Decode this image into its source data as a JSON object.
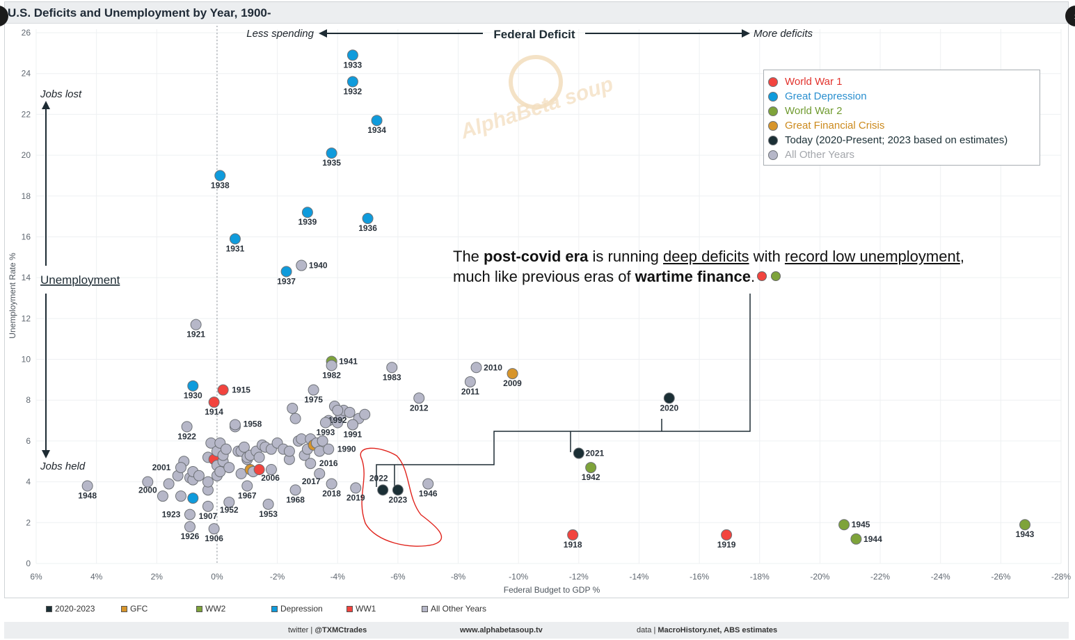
{
  "title": "U.S. Deficits and Unemployment by Year, 1900-",
  "chart_data": {
    "type": "scatter",
    "title": "U.S. Deficits and Unemployment by Year, 1900-",
    "xlabel": "Federal Budget to GDP %",
    "ylabel": "Unemployment Rate %",
    "xlim": [
      6,
      -28
    ],
    "ylim": [
      0,
      26
    ],
    "x_ticks": [
      6,
      4,
      2,
      0,
      -2,
      -4,
      -6,
      -8,
      -10,
      -12,
      -14,
      -16,
      -18,
      -20,
      -22,
      -24,
      -26,
      -28
    ],
    "y_ticks": [
      0,
      2,
      4,
      6,
      8,
      10,
      12,
      14,
      16,
      18,
      20,
      22,
      24,
      26
    ],
    "top_labels": {
      "less": "Less spending",
      "center": "Federal Deficit",
      "more": "More deficits"
    },
    "side_labels": {
      "top": "Jobs lost",
      "middle": "Unemployment",
      "bottom": "Jobs held"
    },
    "categories": {
      "ww1": {
        "name": "World War 1",
        "color": "#f2443e"
      },
      "dep": {
        "name": "Great Depression",
        "color": "#0f9bdc"
      },
      "ww2": {
        "name": "World War 2",
        "color": "#7ea33a"
      },
      "gfc": {
        "name": "Great Financial Crisis",
        "color": "#d7952b"
      },
      "today": {
        "name": "Today (2020-Present; 2023 based on estimates)",
        "color": "#1b2f35"
      },
      "other": {
        "name": "All Other Years",
        "color": "#b6b7c8"
      }
    },
    "labeled_points": [
      {
        "year": "1933",
        "x": -4.5,
        "y": 24.9,
        "cat": "dep"
      },
      {
        "year": "1932",
        "x": -4.5,
        "y": 23.6,
        "cat": "dep"
      },
      {
        "year": "1934",
        "x": -5.3,
        "y": 21.7,
        "cat": "dep"
      },
      {
        "year": "1935",
        "x": -3.8,
        "y": 20.1,
        "cat": "dep"
      },
      {
        "year": "1938",
        "x": -0.1,
        "y": 19.0,
        "cat": "dep"
      },
      {
        "year": "1939",
        "x": -3.0,
        "y": 17.2,
        "cat": "dep"
      },
      {
        "year": "1936",
        "x": -5.0,
        "y": 16.9,
        "cat": "dep"
      },
      {
        "year": "1931",
        "x": -0.6,
        "y": 15.9,
        "cat": "dep"
      },
      {
        "year": "1937",
        "x": -2.3,
        "y": 14.3,
        "cat": "dep"
      },
      {
        "year": "1940",
        "x": -2.8,
        "y": 14.6,
        "cat": "other"
      },
      {
        "year": "1921",
        "x": 0.7,
        "y": 11.7,
        "cat": "other"
      },
      {
        "year": "1941",
        "x": -3.8,
        "y": 9.9,
        "cat": "ww2"
      },
      {
        "year": "1982",
        "x": -3.8,
        "y": 9.7,
        "cat": "other"
      },
      {
        "year": "1983",
        "x": -5.8,
        "y": 9.6,
        "cat": "other"
      },
      {
        "year": "2010",
        "x": -8.6,
        "y": 9.6,
        "cat": "other"
      },
      {
        "year": "2009",
        "x": -9.8,
        "y": 9.3,
        "cat": "gfc"
      },
      {
        "year": "2011",
        "x": -8.4,
        "y": 8.9,
        "cat": "other"
      },
      {
        "year": "1930",
        "x": 0.8,
        "y": 8.7,
        "cat": "dep"
      },
      {
        "year": "1915",
        "x": -0.2,
        "y": 8.5,
        "cat": "ww1"
      },
      {
        "year": "1914",
        "x": 0.1,
        "y": 7.9,
        "cat": "ww1"
      },
      {
        "year": "1975",
        "x": -3.2,
        "y": 8.5,
        "cat": "other"
      },
      {
        "year": "1992",
        "x": -4.0,
        "y": 7.5,
        "cat": "other"
      },
      {
        "year": "1993",
        "x": -3.6,
        "y": 6.9,
        "cat": "other"
      },
      {
        "year": "2012",
        "x": -6.7,
        "y": 8.1,
        "cat": "other"
      },
      {
        "year": "2020",
        "x": -15.0,
        "y": 8.1,
        "cat": "today"
      },
      {
        "year": "1958",
        "x": -0.6,
        "y": 6.8,
        "cat": "other"
      },
      {
        "year": "1922",
        "x": 1.0,
        "y": 6.7,
        "cat": "other"
      },
      {
        "year": "1991",
        "x": -4.5,
        "y": 6.8,
        "cat": "other"
      },
      {
        "year": "1990",
        "x": -3.7,
        "y": 5.6,
        "cat": "other"
      },
      {
        "year": "2021",
        "x": -12.0,
        "y": 5.4,
        "cat": "today"
      },
      {
        "year": "2016",
        "x": -3.1,
        "y": 4.9,
        "cat": "other"
      },
      {
        "year": "2017",
        "x": -3.4,
        "y": 4.4,
        "cat": "other"
      },
      {
        "year": "2001",
        "x": 1.2,
        "y": 4.7,
        "cat": "other"
      },
      {
        "year": "2006",
        "x": -1.4,
        "y": 4.6,
        "cat": "ww1"
      },
      {
        "year": "1942",
        "x": -12.4,
        "y": 4.7,
        "cat": "ww2"
      },
      {
        "year": "2000",
        "x": 2.3,
        "y": 4.0,
        "cat": "other"
      },
      {
        "year": "1948",
        "x": 4.3,
        "y": 3.8,
        "cat": "other"
      },
      {
        "year": "1967",
        "x": -1.0,
        "y": 3.8,
        "cat": "other"
      },
      {
        "year": "2018",
        "x": -3.8,
        "y": 3.9,
        "cat": "other"
      },
      {
        "year": "2019",
        "x": -4.6,
        "y": 3.7,
        "cat": "other"
      },
      {
        "year": "2022",
        "x": -5.5,
        "y": 3.6,
        "cat": "today"
      },
      {
        "year": "2023",
        "x": -6.0,
        "y": 3.6,
        "cat": "today"
      },
      {
        "year": "1946",
        "x": -7.0,
        "y": 3.9,
        "cat": "other"
      },
      {
        "year": "1968",
        "x": -2.6,
        "y": 3.6,
        "cat": "other"
      },
      {
        "year": "1923",
        "x": 0.9,
        "y": 2.4,
        "cat": "other"
      },
      {
        "year": "1907",
        "x": 0.3,
        "y": 2.8,
        "cat": "other"
      },
      {
        "year": "1952",
        "x": -0.4,
        "y": 3.0,
        "cat": "other"
      },
      {
        "year": "1953",
        "x": -1.7,
        "y": 2.9,
        "cat": "other"
      },
      {
        "year": "1926",
        "x": 0.9,
        "y": 1.8,
        "cat": "other"
      },
      {
        "year": "1906",
        "x": 0.1,
        "y": 1.7,
        "cat": "other"
      },
      {
        "year": "1918",
        "x": -11.8,
        "y": 1.4,
        "cat": "ww1"
      },
      {
        "year": "1919",
        "x": -16.9,
        "y": 1.4,
        "cat": "ww1"
      },
      {
        "year": "1945",
        "x": -20.8,
        "y": 1.9,
        "cat": "ww2"
      },
      {
        "year": "1944",
        "x": -21.2,
        "y": 1.2,
        "cat": "ww2"
      },
      {
        "year": "1943",
        "x": -26.8,
        "y": 1.9,
        "cat": "ww2"
      }
    ],
    "unlabeled_points": [
      {
        "x": 1.1,
        "y": 5.0,
        "cat": "other"
      },
      {
        "x": 1.3,
        "y": 4.3,
        "cat": "other"
      },
      {
        "x": 1.6,
        "y": 3.9,
        "cat": "other"
      },
      {
        "x": 1.8,
        "y": 3.3,
        "cat": "other"
      },
      {
        "x": 1.2,
        "y": 3.3,
        "cat": "other"
      },
      {
        "x": 0.9,
        "y": 4.2,
        "cat": "other"
      },
      {
        "x": 0.8,
        "y": 4.1,
        "cat": "other"
      },
      {
        "x": 0.8,
        "y": 3.2,
        "cat": "dep"
      },
      {
        "x": 0.8,
        "y": 4.5,
        "cat": "other"
      },
      {
        "x": 0.6,
        "y": 4.3,
        "cat": "other"
      },
      {
        "x": 0.3,
        "y": 3.6,
        "cat": "other"
      },
      {
        "x": 0.3,
        "y": 4.0,
        "cat": "other"
      },
      {
        "x": 0.3,
        "y": 5.2,
        "cat": "other"
      },
      {
        "x": 0.2,
        "y": 5.9,
        "cat": "other"
      },
      {
        "x": 0.1,
        "y": 5.1,
        "cat": "ww1"
      },
      {
        "x": 0.0,
        "y": 4.8,
        "cat": "other"
      },
      {
        "x": 0.0,
        "y": 5.5,
        "cat": "other"
      },
      {
        "x": 0.0,
        "y": 4.3,
        "cat": "other"
      },
      {
        "x": -0.1,
        "y": 5.9,
        "cat": "other"
      },
      {
        "x": -0.1,
        "y": 4.5,
        "cat": "other"
      },
      {
        "x": -0.2,
        "y": 5.0,
        "cat": "other"
      },
      {
        "x": -0.2,
        "y": 5.3,
        "cat": "other"
      },
      {
        "x": -0.3,
        "y": 5.6,
        "cat": "other"
      },
      {
        "x": -0.4,
        "y": 4.7,
        "cat": "other"
      },
      {
        "x": -0.7,
        "y": 5.5,
        "cat": "other"
      },
      {
        "x": -0.8,
        "y": 4.4,
        "cat": "other"
      },
      {
        "x": -0.8,
        "y": 5.5,
        "cat": "other"
      },
      {
        "x": -0.9,
        "y": 5.7,
        "cat": "other"
      },
      {
        "x": -1.0,
        "y": 5.1,
        "cat": "other"
      },
      {
        "x": -1.0,
        "y": 5.2,
        "cat": "other"
      },
      {
        "x": -1.1,
        "y": 5.3,
        "cat": "other"
      },
      {
        "x": -1.1,
        "y": 4.6,
        "cat": "gfc"
      },
      {
        "x": -1.2,
        "y": 4.5,
        "cat": "other"
      },
      {
        "x": -1.3,
        "y": 5.5,
        "cat": "other"
      },
      {
        "x": -1.4,
        "y": 5.2,
        "cat": "other"
      },
      {
        "x": -1.5,
        "y": 5.8,
        "cat": "other"
      },
      {
        "x": -1.6,
        "y": 5.7,
        "cat": "other"
      },
      {
        "x": -1.8,
        "y": 4.6,
        "cat": "other"
      },
      {
        "x": -1.8,
        "y": 5.6,
        "cat": "other"
      },
      {
        "x": -2.0,
        "y": 5.9,
        "cat": "other"
      },
      {
        "x": -2.2,
        "y": 5.6,
        "cat": "other"
      },
      {
        "x": -2.4,
        "y": 5.1,
        "cat": "other"
      },
      {
        "x": -2.4,
        "y": 5.5,
        "cat": "other"
      },
      {
        "x": -2.5,
        "y": 7.6,
        "cat": "other"
      },
      {
        "x": -2.6,
        "y": 7.1,
        "cat": "other"
      },
      {
        "x": -2.7,
        "y": 6.0,
        "cat": "other"
      },
      {
        "x": -2.8,
        "y": 6.1,
        "cat": "other"
      },
      {
        "x": -2.9,
        "y": 5.3,
        "cat": "other"
      },
      {
        "x": -3.0,
        "y": 5.6,
        "cat": "other"
      },
      {
        "x": -3.1,
        "y": 6.1,
        "cat": "other"
      },
      {
        "x": -3.2,
        "y": 5.8,
        "cat": "gfc"
      },
      {
        "x": -3.3,
        "y": 5.9,
        "cat": "other"
      },
      {
        "x": -3.4,
        "y": 5.5,
        "cat": "other"
      },
      {
        "x": -3.5,
        "y": 6.0,
        "cat": "other"
      },
      {
        "x": -3.7,
        "y": 7.0,
        "cat": "other"
      },
      {
        "x": -3.9,
        "y": 7.7,
        "cat": "other"
      },
      {
        "x": -4.0,
        "y": 6.9,
        "cat": "other"
      },
      {
        "x": -4.1,
        "y": 7.3,
        "cat": "other"
      },
      {
        "x": -4.2,
        "y": 7.5,
        "cat": "other"
      },
      {
        "x": -4.4,
        "y": 7.4,
        "cat": "other"
      },
      {
        "x": -4.7,
        "y": 7.1,
        "cat": "other"
      },
      {
        "x": -4.9,
        "y": 7.3,
        "cat": "other"
      },
      {
        "x": -4.5,
        "y": 6.8,
        "cat": "other"
      },
      {
        "x": -0.6,
        "y": 6.7,
        "cat": "other"
      }
    ]
  },
  "legend": {
    "items": [
      {
        "label": "World War 1",
        "color": "#f2443e",
        "text_color": "#e2332d"
      },
      {
        "label": "Great Depression",
        "color": "#0f9bdc",
        "text_color": "#2a8fcf"
      },
      {
        "label": "World War 2",
        "color": "#7ea33a",
        "text_color": "#6f9a2f"
      },
      {
        "label": "Great Financial Crisis",
        "color": "#d7952b",
        "text_color": "#cc8a1d"
      },
      {
        "label": "Today (2020-Present; 2023 based on estimates)",
        "color": "#1b2f35",
        "text_color": "#1b2f35"
      },
      {
        "label": "All Other Years",
        "color": "#b6b7c8",
        "text_color": "#a3a6ab"
      }
    ]
  },
  "annotation": {
    "p1": "The ",
    "b1": "post-covid era",
    "p2": " is running ",
    "u1": "deep deficits",
    "p3": " with ",
    "u2": "record low unemployment",
    "p4": ",",
    "p5": "much like previous eras of ",
    "b2": "wartime finance",
    "p6": "."
  },
  "bottom_legend": [
    {
      "label": "2020-2023",
      "color": "#1b2f35"
    },
    {
      "label": "GFC",
      "color": "#d7952b"
    },
    {
      "label": "WW2",
      "color": "#7ea33a"
    },
    {
      "label": "Depression",
      "color": "#0f9bdc"
    },
    {
      "label": "WW1",
      "color": "#f2443e"
    },
    {
      "label": "All Other Years",
      "color": "#b6b7c8"
    }
  ],
  "footer": {
    "twitter_prefix": "twitter | ",
    "twitter_handle": "@TXMCtrades",
    "site": "www.alphabetasoup.tv",
    "data_prefix": "data | ",
    "data_source": "MacroHistory.net, ABS estimates"
  },
  "watermark": "AlphaBeta soup"
}
